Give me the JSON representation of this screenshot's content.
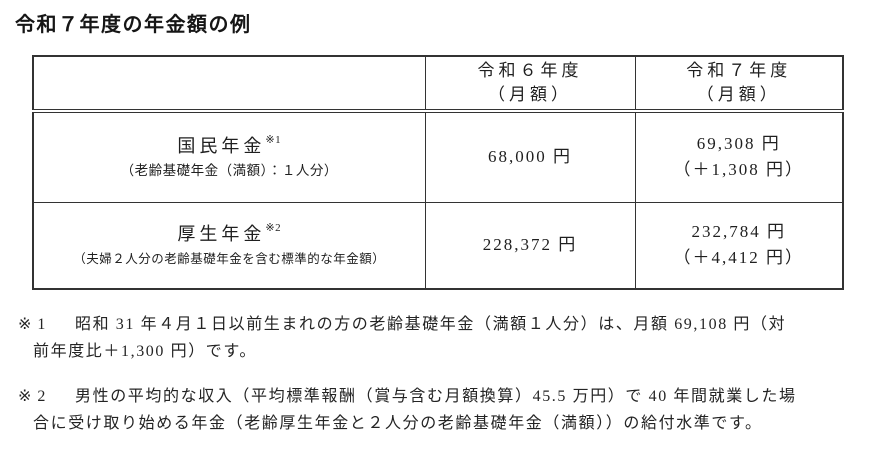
{
  "title": "令和７年度の年金額の例",
  "table": {
    "col_headers": [
      {
        "line1": "令和６年度",
        "line2": "（月額）"
      },
      {
        "line1": "令和７年度",
        "line2": "（月額）"
      }
    ],
    "rows": [
      {
        "name": "国民年金",
        "note_ref": "※1",
        "desc": "（老齢基礎年金（満額）：１人分）",
        "r6_value": "68,000 円",
        "r7_value": "69,308 円",
        "r7_diff": "（＋1,308 円）"
      },
      {
        "name": "厚生年金",
        "note_ref": "※2",
        "desc": "（夫婦２人分の老齢基礎年金を含む標準的な年金額）",
        "r6_value": "228,372 円",
        "r7_value": "232,784 円",
        "r7_diff": "（＋4,412 円）"
      }
    ]
  },
  "notes": [
    {
      "marker": "※1",
      "line1": "昭和 31 年４月１日以前生まれの方の老齢基礎年金（満額１人分）は、月額 69,108 円（対",
      "line2": "前年度比＋1,300 円）です。"
    },
    {
      "marker": "※2",
      "line1": "男性の平均的な収入（平均標準報酬（賞与含む月額換算）45.5 万円）で 40 年間就業した場",
      "line2": "合に受け取り始める年金（老齢厚生年金と２人分の老齢基礎年金（満額））の給付水準です。"
    }
  ],
  "colors": {
    "text": "#1f1f1f",
    "border": "#333333",
    "background": "#ffffff"
  }
}
